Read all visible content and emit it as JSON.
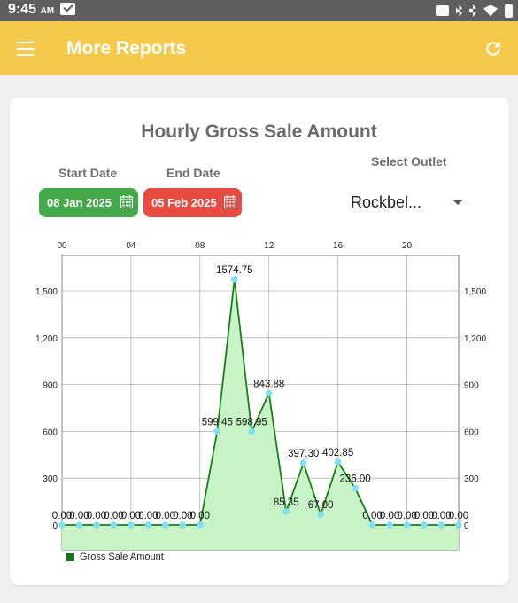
{
  "status": {
    "time": "9:45",
    "ampm": "AM"
  },
  "appbar": {
    "title": "More Reports"
  },
  "report": {
    "title": "Hourly Gross Sale Amount",
    "start_label": "Start Date",
    "end_label": "End Date",
    "start_date": "08 Jan 2025",
    "end_date": "05 Feb 2025",
    "outlet_label": "Select Outlet",
    "outlet_value": "Rockbel..."
  },
  "colors": {
    "appbar": "#f5c94c",
    "start": "#43a94b",
    "end": "#e74b41",
    "line": "#158015",
    "fill": "#c8f3c6",
    "point": "#7fe0f2"
  },
  "chart_data": {
    "type": "area",
    "title": "Hourly Gross Sale Amount",
    "x": [
      0,
      1,
      2,
      3,
      4,
      5,
      6,
      7,
      8,
      9,
      10,
      11,
      12,
      13,
      14,
      15,
      16,
      17,
      18,
      19,
      20,
      21,
      22,
      23
    ],
    "x_tick_labels": [
      "00",
      "04",
      "08",
      "12",
      "16",
      "20"
    ],
    "x_tick_values": [
      0,
      4,
      8,
      12,
      16,
      20
    ],
    "ylim": [
      0,
      1750
    ],
    "y_ticks": [
      0,
      300,
      600,
      900,
      1200,
      1500
    ],
    "y_tick_labels": [
      "0",
      "300",
      "600",
      "900",
      "1,200",
      "1,500"
    ],
    "series": [
      {
        "name": "Gross Sale Amount",
        "values": [
          0,
          0,
          0,
          0,
          0,
          0,
          0,
          0,
          0,
          599.45,
          1574.75,
          598.95,
          843.88,
          85.35,
          397.3,
          67.0,
          402.85,
          236.0,
          0,
          0,
          0,
          0,
          0,
          0
        ],
        "labels": [
          "0.00",
          "0.00",
          "0.00",
          "0.00",
          "0.00",
          "0.00",
          "0.00",
          "0.00",
          "0.00",
          "599.45",
          "1574.75",
          "598.95",
          "843.88",
          "85.35",
          "397.30",
          "67.00",
          "402.85",
          "236.00",
          "0.00",
          "0.00",
          "0.00",
          "0.00",
          "0.00",
          "0.00"
        ]
      }
    ],
    "grid": true,
    "legend": "bottom-left"
  }
}
